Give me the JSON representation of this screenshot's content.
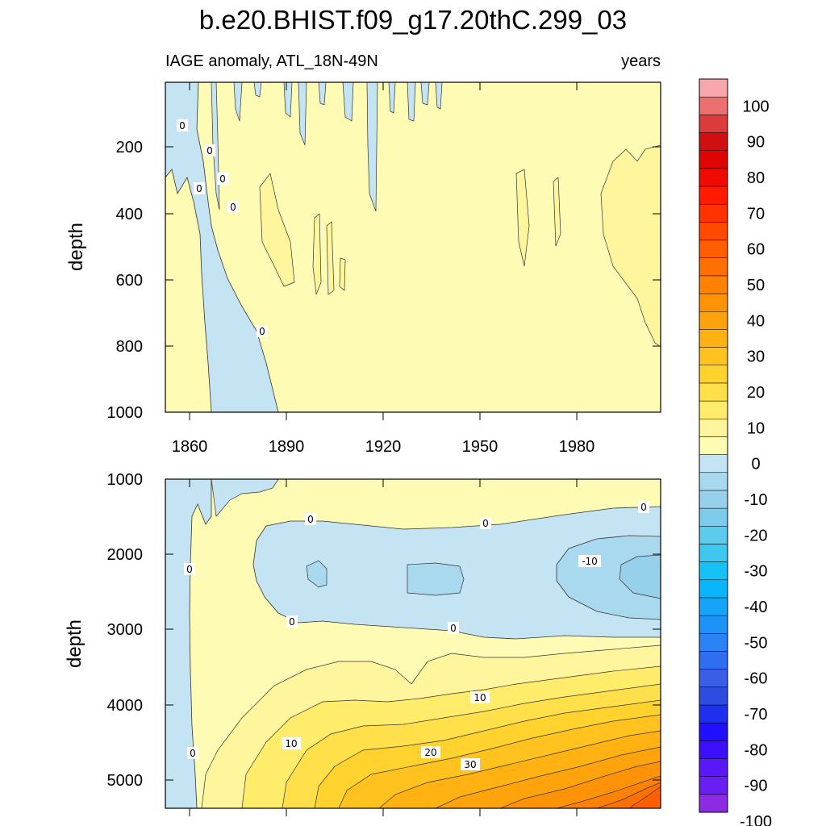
{
  "title": "b.e20.BHIST.f09_g17.20thC.299_03",
  "colorbar": {
    "levels": [
      -100,
      -95,
      -90,
      -85,
      -80,
      -75,
      -70,
      -65,
      -60,
      -55,
      -50,
      -45,
      -40,
      -35,
      -30,
      -25,
      -20,
      -15,
      -10,
      -5,
      0,
      5,
      10,
      15,
      20,
      25,
      30,
      35,
      40,
      45,
      50,
      55,
      60,
      65,
      70,
      75,
      80,
      85,
      90,
      95,
      100
    ],
    "labels": [
      "100",
      "90",
      "80",
      "70",
      "60",
      "50",
      "40",
      "30",
      "20",
      "10",
      "0",
      "-10",
      "-20",
      "-30",
      "-40",
      "-50",
      "-60",
      "-70",
      "-80",
      "-90",
      "-100"
    ],
    "colors_bottom_to_top": [
      "#8c2be2",
      "#6a1ff2",
      "#5a18f8",
      "#3a10fc",
      "#2010ff",
      "#1e2ff0",
      "#2d4ce0",
      "#3a5fe6",
      "#2f6ef0",
      "#2a82f5",
      "#1d93f8",
      "#14a5fb",
      "#0ab6fb",
      "#16c1f5",
      "#3ec7ef",
      "#5ccbee",
      "#7ecbec",
      "#96d0eb",
      "#a9d9ee",
      "#c4e4f4",
      "#fefbb4",
      "#fff59c",
      "#ffec6b",
      "#ffe04a",
      "#ffd22e",
      "#ffc21e",
      "#ffb212",
      "#ffa30d",
      "#ff9307",
      "#ff8204",
      "#ff7002",
      "#ff5e01",
      "#ff4a00",
      "#ff3200",
      "#ff1a00",
      "#f00a00",
      "#e00505",
      "#d01010",
      "#dc3b3b",
      "#ec7070",
      "#f8a8ac"
    ],
    "zero_color": "#fefbb4"
  },
  "chart_data": [
    {
      "type": "contour",
      "title": "",
      "subtitle_left": "IAGE anomaly, ATL_18N-49N",
      "subtitle_right": "years",
      "xlabel": "",
      "ylabel": "depth",
      "xlim": [
        1850,
        2005
      ],
      "ylim": [
        0,
        1000
      ],
      "y_inverted": true,
      "xticks": [
        "1860",
        "1890",
        "1920",
        "1950",
        "1980"
      ],
      "yticks": [
        "200",
        "400",
        "600",
        "800",
        "1000"
      ],
      "contour_labels": [
        "0",
        "0",
        "0",
        "0",
        "0",
        "0"
      ],
      "features": [
        {
          "region": "years 1850-1888, upper 1000 m (tilted band)",
          "range": [
            -5,
            0
          ]
        },
        {
          "region": "years 1878-1905, 300-640 m",
          "range": [
            0,
            5
          ]
        },
        {
          "region": "years 1988-2005, 180-800 m",
          "range": [
            0,
            5
          ]
        },
        {
          "region": "remainder",
          "range": [
            0,
            5
          ]
        }
      ]
    },
    {
      "type": "contour",
      "title": "",
      "xlabel": "",
      "ylabel": "depth",
      "xlim": [
        1850,
        2005
      ],
      "ylim": [
        1000,
        5350
      ],
      "y_inverted": true,
      "yticks": [
        "1000",
        "2000",
        "3000",
        "4000",
        "5000"
      ],
      "contour_labels": [
        "0",
        "0",
        "0",
        "0",
        "0",
        "0",
        "-10",
        "10",
        "10",
        "20",
        "30",
        "0"
      ],
      "features": [
        {
          "region": "years 1878-2005, 1400-3200 m",
          "range": [
            -5,
            0
          ]
        },
        {
          "region": "years 1960-2005, 1600-2800 m",
          "range": [
            -15,
            -5
          ]
        },
        {
          "region": "years 1850-1858, 1000-5350 m",
          "range": [
            -5,
            0
          ]
        },
        {
          "region": "years 1880-2005, 3200-5350 m",
          "range": [
            0,
            45
          ]
        }
      ]
    }
  ]
}
